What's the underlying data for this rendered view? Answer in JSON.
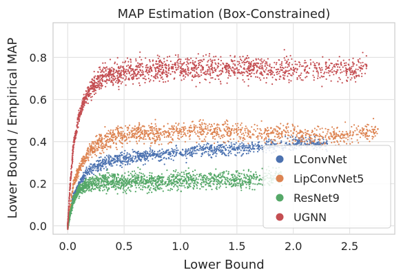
{
  "chart_data": {
    "type": "scatter",
    "title": "MAP Estimation (Box-Constrained)",
    "xlabel": "Lower Bound",
    "ylabel": "Lower Bound / Empirical MAP",
    "xlim": [
      -0.13,
      2.9
    ],
    "ylim": [
      -0.04,
      0.965
    ],
    "xticks": [
      0.0,
      0.5,
      1.0,
      1.5,
      2.0,
      2.5
    ],
    "xtick_labels": [
      "0.0",
      "0.5",
      "1.0",
      "1.5",
      "2.0",
      "2.5"
    ],
    "yticks": [
      0.0,
      0.2,
      0.4,
      0.6,
      0.8
    ],
    "ytick_labels": [
      "0.0",
      "0.2",
      "0.4",
      "0.6",
      "0.8"
    ],
    "grid": true,
    "legend_position": "lower-right",
    "series": [
      {
        "name": "LConvNet",
        "color": "#4c72b0",
        "points": [
          [
            0.05,
            0.14
          ],
          [
            0.1,
            0.2
          ],
          [
            0.15,
            0.24
          ],
          [
            0.2,
            0.27
          ],
          [
            0.3,
            0.3
          ],
          [
            0.4,
            0.31
          ],
          [
            0.5,
            0.32
          ],
          [
            0.6,
            0.33
          ],
          [
            0.7,
            0.33
          ],
          [
            0.8,
            0.34
          ],
          [
            0.9,
            0.34
          ],
          [
            1.0,
            0.35
          ],
          [
            1.1,
            0.35
          ],
          [
            1.2,
            0.36
          ],
          [
            1.3,
            0.36
          ],
          [
            1.4,
            0.36
          ],
          [
            1.5,
            0.37
          ],
          [
            1.6,
            0.37
          ],
          [
            1.7,
            0.38
          ],
          [
            1.8,
            0.38
          ],
          [
            1.9,
            0.38
          ],
          [
            2.0,
            0.39
          ],
          [
            2.1,
            0.4
          ],
          [
            2.2,
            0.39
          ],
          [
            2.3,
            0.39
          ]
        ]
      },
      {
        "name": "LipConvNet5",
        "color": "#dd8452",
        "points": [
          [
            0.05,
            0.2
          ],
          [
            0.1,
            0.27
          ],
          [
            0.15,
            0.32
          ],
          [
            0.2,
            0.36
          ],
          [
            0.3,
            0.4
          ],
          [
            0.4,
            0.42
          ],
          [
            0.5,
            0.43
          ],
          [
            0.6,
            0.44
          ],
          [
            0.7,
            0.44
          ],
          [
            0.8,
            0.44
          ],
          [
            0.9,
            0.44
          ],
          [
            1.0,
            0.45
          ],
          [
            1.1,
            0.45
          ],
          [
            1.2,
            0.45
          ],
          [
            1.3,
            0.45
          ],
          [
            1.4,
            0.45
          ],
          [
            1.5,
            0.45
          ],
          [
            1.6,
            0.44
          ],
          [
            1.7,
            0.44
          ],
          [
            1.8,
            0.44
          ],
          [
            1.9,
            0.44
          ],
          [
            2.0,
            0.44
          ],
          [
            2.2,
            0.43
          ],
          [
            2.4,
            0.43
          ],
          [
            2.6,
            0.44
          ],
          [
            2.75,
            0.46
          ]
        ]
      },
      {
        "name": "ResNet9",
        "color": "#55a868",
        "points": [
          [
            0.05,
            0.12
          ],
          [
            0.1,
            0.17
          ],
          [
            0.15,
            0.19
          ],
          [
            0.2,
            0.2
          ],
          [
            0.3,
            0.21
          ],
          [
            0.4,
            0.21
          ],
          [
            0.5,
            0.21
          ],
          [
            0.6,
            0.21
          ],
          [
            0.7,
            0.21
          ],
          [
            0.8,
            0.21
          ],
          [
            0.9,
            0.21
          ],
          [
            1.0,
            0.22
          ],
          [
            1.1,
            0.22
          ],
          [
            1.2,
            0.22
          ],
          [
            1.3,
            0.22
          ],
          [
            1.4,
            0.22
          ],
          [
            1.5,
            0.22
          ],
          [
            1.6,
            0.22
          ],
          [
            1.7,
            0.22
          ],
          [
            1.8,
            0.23
          ],
          [
            1.9,
            0.24
          ]
        ]
      },
      {
        "name": "UGNN",
        "color": "#c44e52",
        "points": [
          [
            0.02,
            0.18
          ],
          [
            0.05,
            0.38
          ],
          [
            0.1,
            0.52
          ],
          [
            0.15,
            0.6
          ],
          [
            0.2,
            0.65
          ],
          [
            0.3,
            0.7
          ],
          [
            0.4,
            0.72
          ],
          [
            0.5,
            0.73
          ],
          [
            0.6,
            0.74
          ],
          [
            0.7,
            0.74
          ],
          [
            0.8,
            0.75
          ],
          [
            0.9,
            0.75
          ],
          [
            1.0,
            0.75
          ],
          [
            1.1,
            0.75
          ],
          [
            1.2,
            0.75
          ],
          [
            1.3,
            0.75
          ],
          [
            1.4,
            0.75
          ],
          [
            1.5,
            0.75
          ],
          [
            1.6,
            0.75
          ],
          [
            1.7,
            0.75
          ],
          [
            1.8,
            0.74
          ],
          [
            1.9,
            0.74
          ],
          [
            2.0,
            0.74
          ],
          [
            2.1,
            0.74
          ],
          [
            2.3,
            0.75
          ],
          [
            2.5,
            0.74
          ],
          [
            2.65,
            0.76
          ]
        ]
      }
    ]
  }
}
